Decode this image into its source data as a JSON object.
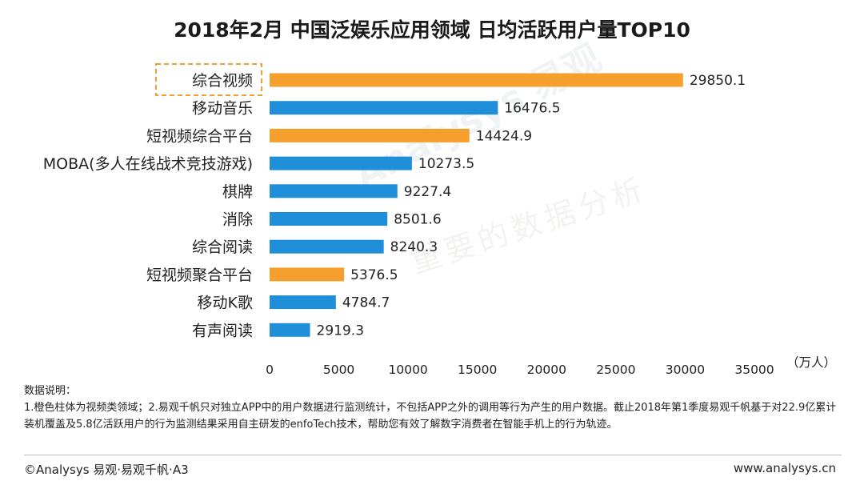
{
  "chart_data": {
    "type": "bar",
    "orientation": "horizontal",
    "title": "2018年2月 中国泛娱乐应用领域 日均活跃用户量TOP10",
    "unit": "（万人）",
    "categories": [
      "综合视频",
      "移动音乐",
      "短视频综合平台",
      "MOBA(多人在线战术竞技游戏)",
      "棋牌",
      "消除",
      "综合阅读",
      "短视频聚合平台",
      "移动K歌",
      "有声阅读"
    ],
    "values": [
      29850.1,
      16476.5,
      14424.9,
      10273.5,
      9227.4,
      8501.6,
      8240.3,
      5376.5,
      4784.7,
      2919.3
    ],
    "value_labels": [
      "29850.1",
      "16476.5",
      "14424.9",
      "10273.5",
      "9227.4",
      "8501.6",
      "8240.3",
      "5376.5",
      "4784.7",
      "2919.3"
    ],
    "bar_colors": [
      "#F5A02D",
      "#1E8FD8",
      "#F5A02D",
      "#1E8FD8",
      "#1E8FD8",
      "#1E8FD8",
      "#1E8FD8",
      "#F5A02D",
      "#1E8FD8",
      "#1E8FD8"
    ],
    "xlim": [
      0,
      35000
    ],
    "xticks": [
      0,
      5000,
      10000,
      15000,
      20000,
      25000,
      30000,
      35000
    ],
    "highlighted_category": "综合视频",
    "grid": false,
    "legend": "none"
  },
  "colors": {
    "orange": "#F5A02D",
    "blue": "#1E8FD8",
    "highlight_border": "#F0A030"
  },
  "notes": {
    "heading": "数据说明：",
    "body": "1.橙色柱体为视频类领域；2.易观千帆只对独立APP中的用户数据进行监测统计，不包括APP之外的调用等行为产生的用户数据。截止2018年第1季度易观千帆基于对22.9亿累计装机覆盖及5.8亿活跃用户的行为监测结果采用自主研发的enfoTech技术，帮助您有效了解数字消费者在智能手机上的行为轨迹。"
  },
  "footer": {
    "left": "©Analysys 易观·易观千帆·A3",
    "right": "www.analysys.cn"
  },
  "watermark": {
    "brand": "Analysys 易观",
    "slogan": "重要的数据分析"
  }
}
